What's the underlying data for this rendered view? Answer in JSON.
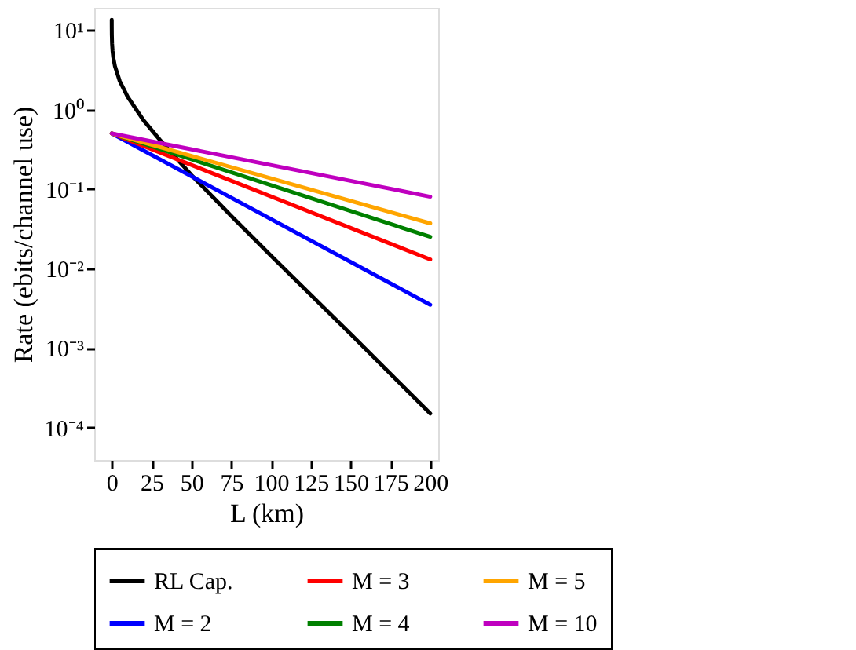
{
  "chart_data": {
    "type": "line",
    "xlabel": "L (km)",
    "ylabel": "Rate (ebits/channel use)",
    "log": "y",
    "xlim": [
      -11,
      205
    ],
    "xticks": [
      0,
      25,
      50,
      75,
      100,
      125,
      150,
      175,
      200
    ],
    "ylim": [
      3.9e-05,
      19
    ],
    "yticks": [
      {
        "value": 0.0001,
        "label": "10⁻⁴"
      },
      {
        "value": 0.001,
        "label": "10⁻³"
      },
      {
        "value": 0.01,
        "label": "10⁻²"
      },
      {
        "value": 0.1,
        "label": "10⁻¹"
      },
      {
        "value": 1,
        "label": "10⁰"
      },
      {
        "value": 10,
        "label": "10¹"
      }
    ],
    "grid": false,
    "legend": "bottom",
    "marker": "none",
    "line_style": "solid",
    "series": [
      {
        "name": "RL Cap.",
        "color": "#000000",
        "x": [
          0.002,
          0.01,
          0.05,
          0.2,
          0.5,
          1,
          2,
          5,
          10,
          20,
          30,
          50,
          75,
          100,
          150,
          200
        ],
        "values": [
          13.4,
          11.1,
          8.76,
          6.77,
          5.45,
          4.47,
          3.51,
          2.28,
          1.44,
          0.73,
          0.42,
          0.15,
          0.046,
          0.0145,
          0.0015,
          0.00015
        ]
      },
      {
        "name": "M = 2",
        "color": "#0000ff",
        "x": [
          0,
          200
        ],
        "values": [
          0.5,
          0.0035
        ]
      },
      {
        "name": "M = 3",
        "color": "#ff0000",
        "x": [
          0,
          200
        ],
        "values": [
          0.5,
          0.013
        ]
      },
      {
        "name": "M = 4",
        "color": "#008000",
        "x": [
          0,
          200
        ],
        "values": [
          0.5,
          0.025
        ]
      },
      {
        "name": "M = 5",
        "color": "#ffa500",
        "x": [
          0,
          200
        ],
        "values": [
          0.5,
          0.037
        ]
      },
      {
        "name": "M = 10",
        "color": "#bf00bf",
        "x": [
          0,
          200
        ],
        "values": [
          0.5,
          0.08
        ]
      }
    ]
  }
}
